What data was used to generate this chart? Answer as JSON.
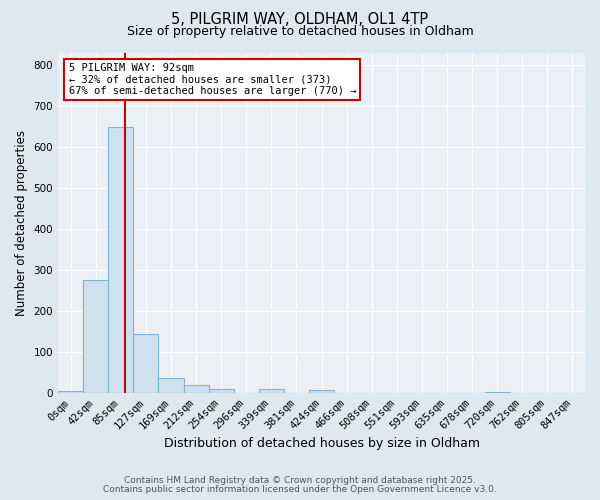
{
  "title1": "5, PILGRIM WAY, OLDHAM, OL1 4TP",
  "title2": "Size of property relative to detached houses in Oldham",
  "xlabel": "Distribution of detached houses by size in Oldham",
  "ylabel": "Number of detached properties",
  "bar_labels": [
    "0sqm",
    "42sqm",
    "85sqm",
    "127sqm",
    "169sqm",
    "212sqm",
    "254sqm",
    "296sqm",
    "339sqm",
    "381sqm",
    "424sqm",
    "466sqm",
    "508sqm",
    "551sqm",
    "593sqm",
    "635sqm",
    "678sqm",
    "720sqm",
    "762sqm",
    "805sqm",
    "847sqm"
  ],
  "bar_values": [
    5,
    275,
    648,
    143,
    37,
    20,
    10,
    0,
    10,
    0,
    8,
    0,
    0,
    0,
    0,
    0,
    0,
    2,
    0,
    0,
    0
  ],
  "bar_color": "#cfe0ee",
  "bar_edge_color": "#7eb5d4",
  "vline_color": "#cc0000",
  "annotation_line1": "5 PILGRIM WAY: 92sqm",
  "annotation_line2": "← 32% of detached houses are smaller (373)",
  "annotation_line3": "67% of semi-detached houses are larger (770) →",
  "annotation_box_color": "#ffffff",
  "annotation_box_edge": "#cc0000",
  "ylim": [
    0,
    830
  ],
  "yticks": [
    0,
    100,
    200,
    300,
    400,
    500,
    600,
    700,
    800
  ],
  "footnote1": "Contains HM Land Registry data © Crown copyright and database right 2025.",
  "footnote2": "Contains public sector information licensed under the Open Government Licence v3.0.",
  "bg_color": "#dde8f0",
  "plot_bg_color": "#eaf0f6",
  "grid_color": "#ffffff",
  "title1_fontsize": 10.5,
  "title2_fontsize": 9,
  "xlabel_fontsize": 9,
  "ylabel_fontsize": 8.5,
  "tick_fontsize": 7.5,
  "annot_fontsize": 7.5,
  "footnote_fontsize": 6.5
}
